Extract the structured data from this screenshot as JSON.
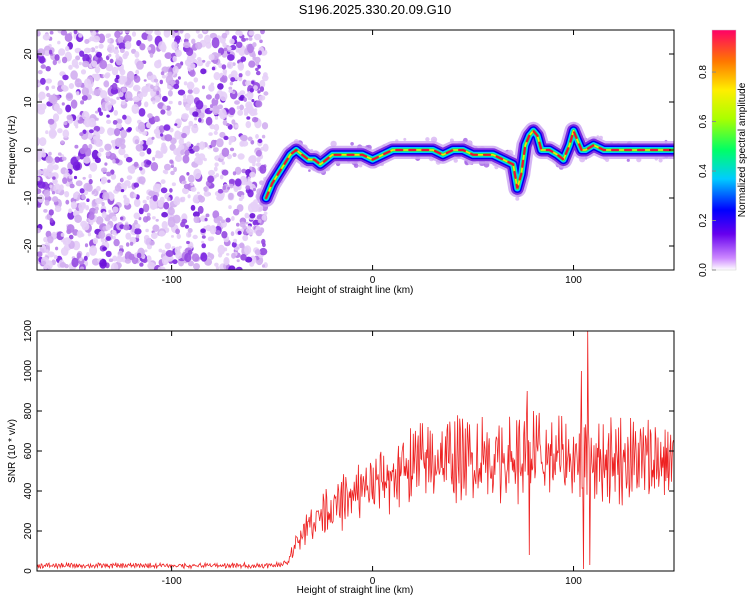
{
  "title": "S196.2025.330.20.09.G10",
  "chart_data": [
    {
      "type": "heatmap",
      "xlabel": "Height of straight line (km)",
      "ylabel": "Frequency (Hz)",
      "xlim": [
        -167,
        150
      ],
      "ylim": [
        -25,
        25
      ],
      "xticks": [
        -100,
        0,
        100
      ],
      "yticks": [
        -20,
        -10,
        0,
        10,
        20
      ],
      "colorbar": {
        "label": "Normalized spectral amplitude",
        "ticks": [
          0.0,
          0.2,
          0.4,
          0.6,
          0.8
        ],
        "range": [
          0,
          0.97
        ]
      },
      "noise_region": {
        "x_from": -167,
        "x_to": -53
      },
      "ridge": [
        [
          -53,
          -10
        ],
        [
          -50,
          -7
        ],
        [
          -47,
          -5
        ],
        [
          -44,
          -3
        ],
        [
          -41,
          -1
        ],
        [
          -38,
          0
        ],
        [
          -35,
          -1
        ],
        [
          -32,
          -2
        ],
        [
          -29,
          -2
        ],
        [
          -26,
          -3
        ],
        [
          -23,
          -2
        ],
        [
          -20,
          -1
        ],
        [
          -15,
          -1
        ],
        [
          -10,
          -1
        ],
        [
          -5,
          -1
        ],
        [
          0,
          -2
        ],
        [
          5,
          -1
        ],
        [
          10,
          0
        ],
        [
          20,
          0
        ],
        [
          30,
          0
        ],
        [
          35,
          -1
        ],
        [
          40,
          0
        ],
        [
          45,
          0
        ],
        [
          50,
          -1
        ],
        [
          55,
          -1
        ],
        [
          60,
          -1
        ],
        [
          65,
          -2
        ],
        [
          70,
          -3
        ],
        [
          72,
          -8
        ],
        [
          74,
          -5
        ],
        [
          76,
          1
        ],
        [
          78,
          3
        ],
        [
          80,
          4
        ],
        [
          82,
          3
        ],
        [
          84,
          0
        ],
        [
          88,
          0
        ],
        [
          92,
          -1
        ],
        [
          95,
          -2
        ],
        [
          98,
          1
        ],
        [
          100,
          4
        ],
        [
          102,
          2
        ],
        [
          104,
          0
        ],
        [
          106,
          0
        ],
        [
          110,
          1
        ],
        [
          115,
          0
        ],
        [
          120,
          0
        ],
        [
          130,
          0
        ],
        [
          140,
          0
        ],
        [
          150,
          0
        ]
      ]
    },
    {
      "type": "line",
      "xlabel": "Height of straight line (km)",
      "ylabel": "SNR (10 * v/v)",
      "xlim": [
        -167,
        150
      ],
      "ylim": [
        0,
        1200
      ],
      "xticks": [
        -100,
        0,
        100
      ],
      "yticks": [
        0,
        200,
        400,
        600,
        800,
        1000,
        1200
      ],
      "series": [
        {
          "name": "SNR",
          "color": "#ee2222",
          "envelope": [
            [
              -167,
              25
            ],
            [
              -100,
              25
            ],
            [
              -50,
              25
            ],
            [
              -42,
              40
            ],
            [
              -40,
              90
            ],
            [
              -37,
              160
            ],
            [
              -30,
              240
            ],
            [
              -20,
              300
            ],
            [
              -10,
              350
            ],
            [
              0,
              400
            ],
            [
              10,
              450
            ],
            [
              20,
              500
            ],
            [
              30,
              520
            ],
            [
              50,
              530
            ],
            [
              70,
              530
            ],
            [
              90,
              530
            ],
            [
              110,
              530
            ],
            [
              130,
              520
            ],
            [
              150,
              520
            ]
          ],
          "spikes": [
            {
              "x": -38,
              "y": 170
            },
            {
              "x": -23,
              "y": 410
            },
            {
              "x": 77,
              "y": 900
            },
            {
              "x": 78,
              "y": 80
            },
            {
              "x": 80,
              "y": 800
            },
            {
              "x": 104,
              "y": 1000
            },
            {
              "x": 105,
              "y": 10
            },
            {
              "x": 107,
              "y": 1200
            },
            {
              "x": 108,
              "y": 30
            }
          ]
        }
      ]
    }
  ]
}
